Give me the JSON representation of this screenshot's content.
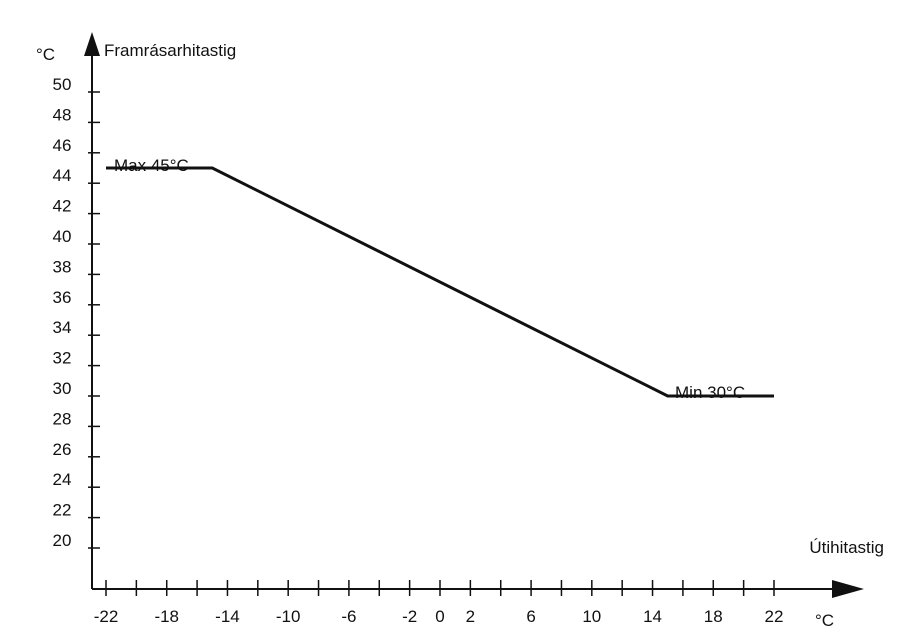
{
  "chart_data": {
    "type": "line",
    "title": "",
    "ylabel": "Framrásarhitastig",
    "yunit": "°C",
    "xlabel": "Útihitastig",
    "xunit": "°C",
    "xlim": [
      -22,
      22
    ],
    "ylim": [
      20,
      50
    ],
    "y_ticks": [
      20,
      22,
      24,
      26,
      28,
      30,
      32,
      34,
      36,
      38,
      40,
      42,
      44,
      46,
      48,
      50
    ],
    "x_tick_labels": [
      -22,
      -18,
      -14,
      -10,
      -6,
      -2,
      0,
      2,
      6,
      10,
      14,
      18,
      22
    ],
    "series": [
      {
        "x": [
          -22,
          -15,
          15,
          22
        ],
        "y": [
          45,
          45,
          30,
          30
        ]
      }
    ],
    "annotations": {
      "max": "Max 45°C",
      "min": "Min 30°C"
    },
    "grid": false,
    "colors": {
      "line": "#111111",
      "axis": "#111111"
    }
  }
}
